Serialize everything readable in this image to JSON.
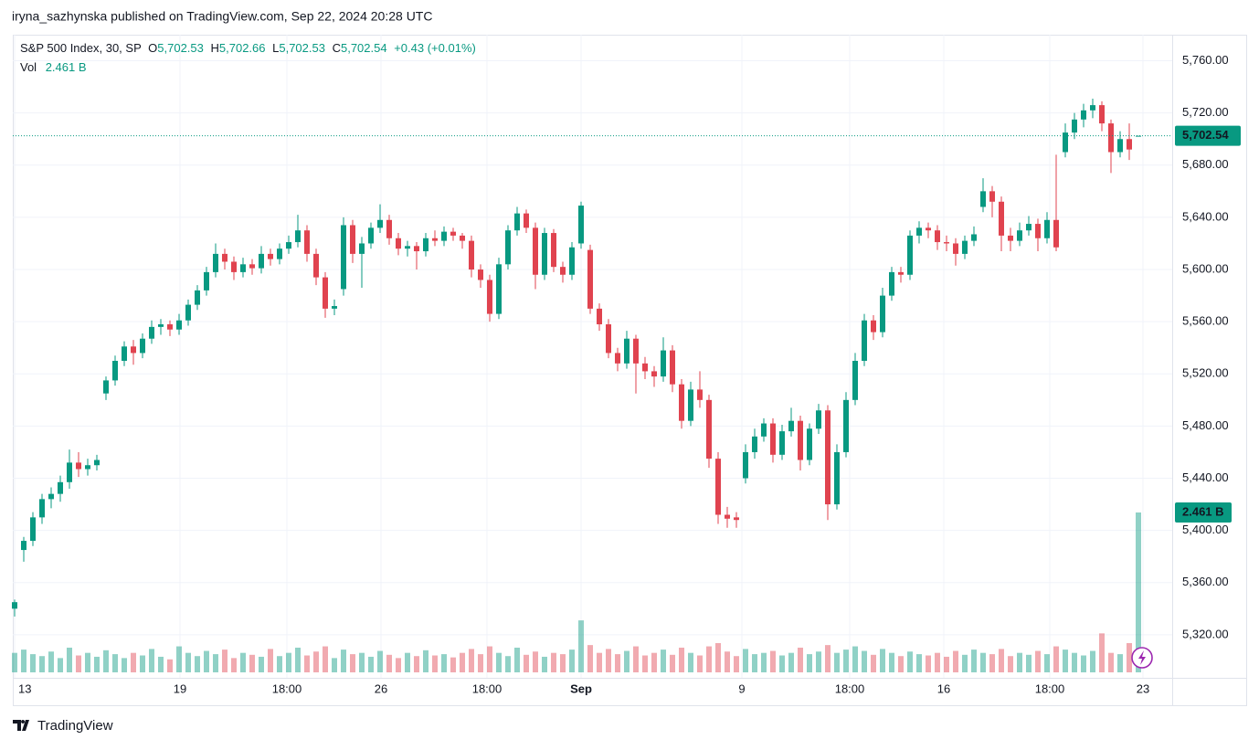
{
  "chart_data": {
    "type": "candlestick",
    "byline": "iryna_sazhynska published on TradingView.com, Sep 22, 2024 20:28 UTC",
    "header": {
      "symbol": "S&P 500 Index, 30, SP",
      "fields": [
        {
          "key": "O",
          "text": "5,702.53"
        },
        {
          "key": "H",
          "text": "5,702.66"
        },
        {
          "key": "L",
          "text": "5,702.53"
        },
        {
          "key": "C",
          "text": "5,702.54"
        }
      ],
      "change": "+0.43 (+0.01%)",
      "volume_key": "Vol",
      "volume_text": "2.461 B"
    },
    "brand": "TradingView",
    "up_color": "#089981",
    "down_color": "#e0434f",
    "ylim": [
      5287,
      5780
    ],
    "yticks": [
      {
        "value": 5320,
        "label": "5,320.00"
      },
      {
        "value": 5360,
        "label": "5,360.00"
      },
      {
        "value": 5400,
        "label": "5,400.00"
      },
      {
        "value": 5440,
        "label": "5,440.00"
      },
      {
        "value": 5480,
        "label": "5,480.00"
      },
      {
        "value": 5520,
        "label": "5,520.00"
      },
      {
        "value": 5560,
        "label": "5,560.00"
      },
      {
        "value": 5600,
        "label": "5,600.00"
      },
      {
        "value": 5640,
        "label": "5,640.00"
      },
      {
        "value": 5680,
        "label": "5,680.00"
      },
      {
        "value": 5720,
        "label": "5,720.00"
      },
      {
        "value": 5760,
        "label": "5,760.00"
      }
    ],
    "xticks": [
      {
        "value": 0,
        "label": "13"
      },
      {
        "value": 18.1,
        "label": "19"
      },
      {
        "value": 29.8,
        "label": "18:00"
      },
      {
        "value": 40.1,
        "label": "26"
      },
      {
        "value": 51.7,
        "label": "18:00"
      },
      {
        "value": 62,
        "label": "Sep",
        "bold": true
      },
      {
        "value": 79.6,
        "label": "9"
      },
      {
        "value": 91.4,
        "label": "18:00"
      },
      {
        "value": 101.7,
        "label": "16"
      },
      {
        "value": 113.3,
        "label": "18:00"
      },
      {
        "value": 123.5,
        "label": "23"
      }
    ],
    "grid": true,
    "candles": [
      [
        5340,
        5347,
        5334,
        5345
      ],
      [
        5385,
        5395,
        5376,
        5392
      ],
      [
        5392,
        5414,
        5388,
        5410
      ],
      [
        5410,
        5428,
        5405,
        5424
      ],
      [
        5424,
        5433,
        5417,
        5428
      ],
      [
        5428,
        5442,
        5422,
        5437
      ],
      [
        5437,
        5462,
        5432,
        5452
      ],
      [
        5452,
        5460,
        5441,
        5447
      ],
      [
        5447,
        5455,
        5442,
        5450
      ],
      [
        5450,
        5458,
        5446,
        5454
      ],
      [
        5505,
        5518,
        5500,
        5515
      ],
      [
        5515,
        5534,
        5511,
        5530
      ],
      [
        5530,
        5545,
        5526,
        5541
      ],
      [
        5541,
        5546,
        5527,
        5536
      ],
      [
        5536,
        5551,
        5532,
        5547
      ],
      [
        5547,
        5561,
        5543,
        5556
      ],
      [
        5556,
        5562,
        5550,
        5558
      ],
      [
        5558,
        5561,
        5549,
        5554
      ],
      [
        5554,
        5566,
        5550,
        5561
      ],
      [
        5561,
        5577,
        5557,
        5573
      ],
      [
        5573,
        5588,
        5569,
        5584
      ],
      [
        5584,
        5602,
        5580,
        5598
      ],
      [
        5598,
        5620,
        5594,
        5612
      ],
      [
        5612,
        5616,
        5600,
        5606
      ],
      [
        5606,
        5610,
        5592,
        5598
      ],
      [
        5598,
        5609,
        5594,
        5604
      ],
      [
        5604,
        5608,
        5596,
        5601
      ],
      [
        5601,
        5618,
        5597,
        5612
      ],
      [
        5612,
        5616,
        5603,
        5608
      ],
      [
        5608,
        5620,
        5604,
        5616
      ],
      [
        5616,
        5626,
        5612,
        5621
      ],
      [
        5621,
        5642,
        5617,
        5630
      ],
      [
        5630,
        5634,
        5606,
        5612
      ],
      [
        5612,
        5616,
        5588,
        5594
      ],
      [
        5594,
        5598,
        5563,
        5570
      ],
      [
        5570,
        5577,
        5565,
        5572
      ],
      [
        5585,
        5640,
        5580,
        5634
      ],
      [
        5634,
        5638,
        5605,
        5612
      ],
      [
        5612,
        5625,
        5586,
        5620
      ],
      [
        5620,
        5636,
        5616,
        5632
      ],
      [
        5632,
        5650,
        5628,
        5638
      ],
      [
        5638,
        5642,
        5619,
        5624
      ],
      [
        5624,
        5628,
        5611,
        5616
      ],
      [
        5616,
        5622,
        5610,
        5618
      ],
      [
        5618,
        5621,
        5600,
        5614
      ],
      [
        5614,
        5628,
        5610,
        5624
      ],
      [
        5624,
        5630,
        5618,
        5622
      ],
      [
        5622,
        5633,
        5618,
        5629
      ],
      [
        5629,
        5632,
        5622,
        5626
      ],
      [
        5626,
        5628,
        5616,
        5622
      ],
      [
        5622,
        5626,
        5594,
        5600
      ],
      [
        5600,
        5604,
        5586,
        5592
      ],
      [
        5592,
        5596,
        5560,
        5566
      ],
      [
        5566,
        5609,
        5562,
        5604
      ],
      [
        5604,
        5634,
        5600,
        5630
      ],
      [
        5630,
        5648,
        5626,
        5643
      ],
      [
        5643,
        5646,
        5628,
        5632
      ],
      [
        5632,
        5636,
        5585,
        5596
      ],
      [
        5596,
        5632,
        5592,
        5628
      ],
      [
        5628,
        5631,
        5598,
        5602
      ],
      [
        5602,
        5606,
        5590,
        5596
      ],
      [
        5596,
        5621,
        5592,
        5617
      ],
      [
        5620,
        5652,
        5616,
        5649
      ],
      [
        5615,
        5619,
        5566,
        5570
      ],
      [
        5570,
        5574,
        5553,
        5558
      ],
      [
        5558,
        5562,
        5532,
        5536
      ],
      [
        5536,
        5540,
        5522,
        5528
      ],
      [
        5528,
        5553,
        5524,
        5547
      ],
      [
        5547,
        5550,
        5505,
        5528
      ],
      [
        5528,
        5533,
        5516,
        5522
      ],
      [
        5522,
        5526,
        5510,
        5518
      ],
      [
        5518,
        5548,
        5514,
        5538
      ],
      [
        5538,
        5542,
        5506,
        5512
      ],
      [
        5512,
        5516,
        5478,
        5484
      ],
      [
        5484,
        5514,
        5480,
        5508
      ],
      [
        5508,
        5522,
        5494,
        5500
      ],
      [
        5500,
        5504,
        5448,
        5455
      ],
      [
        5455,
        5460,
        5405,
        5412
      ],
      [
        5412,
        5418,
        5402,
        5409
      ],
      [
        5410,
        5414,
        5402,
        5408
      ],
      [
        5440,
        5466,
        5436,
        5460
      ],
      [
        5460,
        5478,
        5455,
        5472
      ],
      [
        5472,
        5486,
        5468,
        5482
      ],
      [
        5482,
        5486,
        5452,
        5458
      ],
      [
        5458,
        5481,
        5454,
        5476
      ],
      [
        5476,
        5494,
        5472,
        5484
      ],
      [
        5484,
        5488,
        5446,
        5454
      ],
      [
        5454,
        5482,
        5450,
        5478
      ],
      [
        5478,
        5497,
        5474,
        5492
      ],
      [
        5492,
        5496,
        5408,
        5420
      ],
      [
        5420,
        5466,
        5416,
        5460
      ],
      [
        5460,
        5506,
        5456,
        5500
      ],
      [
        5500,
        5536,
        5496,
        5530
      ],
      [
        5530,
        5566,
        5526,
        5561
      ],
      [
        5561,
        5565,
        5546,
        5552
      ],
      [
        5552,
        5586,
        5548,
        5580
      ],
      [
        5580,
        5602,
        5576,
        5598
      ],
      [
        5598,
        5602,
        5590,
        5596
      ],
      [
        5596,
        5630,
        5592,
        5626
      ],
      [
        5626,
        5637,
        5620,
        5632
      ],
      [
        5632,
        5636,
        5624,
        5630
      ],
      [
        5630,
        5634,
        5615,
        5621
      ],
      [
        5621,
        5626,
        5614,
        5620
      ],
      [
        5620,
        5624,
        5603,
        5612
      ],
      [
        5612,
        5626,
        5608,
        5622
      ],
      [
        5622,
        5633,
        5618,
        5627
      ],
      [
        5648,
        5670,
        5644,
        5660
      ],
      [
        5660,
        5664,
        5640,
        5652
      ],
      [
        5652,
        5656,
        5614,
        5626
      ],
      [
        5626,
        5632,
        5614,
        5622
      ],
      [
        5622,
        5636,
        5618,
        5630
      ],
      [
        5630,
        5641,
        5626,
        5635
      ],
      [
        5635,
        5639,
        5614,
        5624
      ],
      [
        5624,
        5644,
        5620,
        5638
      ],
      [
        5638,
        5688,
        5614,
        5617
      ],
      [
        5690,
        5712,
        5686,
        5705
      ],
      [
        5705,
        5720,
        5700,
        5715
      ],
      [
        5715,
        5727,
        5709,
        5722
      ],
      [
        5722,
        5731,
        5716,
        5726
      ],
      [
        5726,
        5729,
        5706,
        5712
      ],
      [
        5712,
        5715,
        5674,
        5690
      ],
      [
        5690,
        5706,
        5686,
        5700
      ],
      [
        5700,
        5712,
        5684,
        5692
      ],
      [
        5702.53,
        5702.66,
        5702.53,
        5702.54
      ]
    ],
    "volume": [
      0.3,
      0.35,
      0.28,
      0.25,
      0.32,
      0.22,
      0.38,
      0.26,
      0.3,
      0.24,
      0.34,
      0.28,
      0.22,
      0.3,
      0.26,
      0.36,
      0.24,
      0.2,
      0.4,
      0.3,
      0.25,
      0.33,
      0.28,
      0.35,
      0.22,
      0.3,
      0.27,
      0.24,
      0.36,
      0.25,
      0.3,
      0.38,
      0.26,
      0.32,
      0.4,
      0.22,
      0.35,
      0.28,
      0.3,
      0.24,
      0.33,
      0.27,
      0.22,
      0.3,
      0.25,
      0.34,
      0.26,
      0.28,
      0.23,
      0.3,
      0.36,
      0.28,
      0.4,
      0.3,
      0.25,
      0.38,
      0.27,
      0.32,
      0.24,
      0.3,
      0.28,
      0.35,
      0.8,
      0.42,
      0.3,
      0.36,
      0.28,
      0.33,
      0.4,
      0.26,
      0.3,
      0.35,
      0.27,
      0.38,
      0.3,
      0.26,
      0.4,
      0.45,
      0.32,
      0.25,
      0.36,
      0.28,
      0.3,
      0.33,
      0.26,
      0.3,
      0.38,
      0.28,
      0.32,
      0.42,
      0.3,
      0.35,
      0.4,
      0.33,
      0.27,
      0.36,
      0.3,
      0.25,
      0.32,
      0.28,
      0.26,
      0.3,
      0.24,
      0.33,
      0.27,
      0.35,
      0.3,
      0.28,
      0.36,
      0.25,
      0.3,
      0.27,
      0.33,
      0.28,
      0.4,
      0.35,
      0.3,
      0.26,
      0.33,
      0.6,
      0.3,
      0.28,
      0.45,
      2.461
    ]
  }
}
